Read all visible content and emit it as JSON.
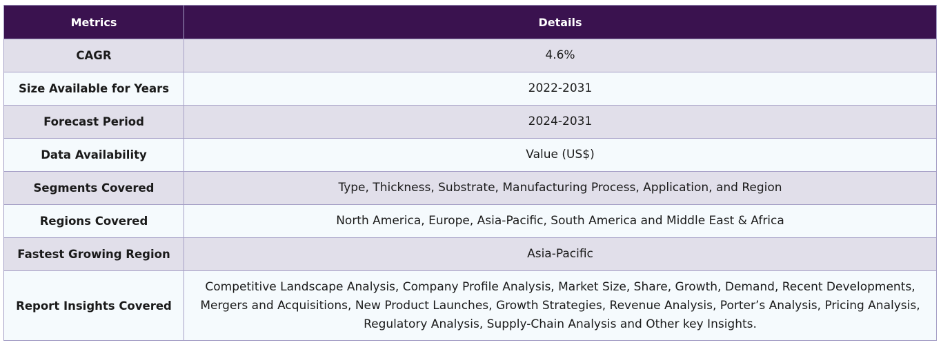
{
  "table": {
    "headers": [
      "Metrics",
      "Details"
    ],
    "rows": [
      {
        "metric": "CAGR",
        "details": "4.6%"
      },
      {
        "metric": "Size Available for Years",
        "details": "2022-2031"
      },
      {
        "metric": "Forecast Period",
        "details": "2024-2031"
      },
      {
        "metric": "Data Availability",
        "details": "Value (US$)"
      },
      {
        "metric": "Segments Covered",
        "details": "Type, Thickness, Substrate, Manufacturing Process, Application, and Region"
      },
      {
        "metric": "Regions Covered",
        "details": "North America, Europe, Asia-Pacific, South America and Middle East & Africa"
      },
      {
        "metric": "Fastest Growing Region",
        "details": "Asia-Pacific"
      },
      {
        "metric": "Report Insights Covered",
        "details": "Competitive Landscape Analysis, Company Profile Analysis, Market Size, Share, Growth, Demand, Recent Developments, Mergers and Acquisitions, New Product Launches, Growth Strategies, Revenue Analysis, Porter’s Analysis, Pricing Analysis, Regulatory Analysis, Supply-Chain Analysis and Other key Insights."
      }
    ]
  },
  "colors": {
    "header_bg": "#3a124f",
    "header_text": "#ffffff",
    "row_odd_bg": "#e1dfea",
    "row_even_bg": "#f5fafd",
    "border": "#a59fc6"
  }
}
